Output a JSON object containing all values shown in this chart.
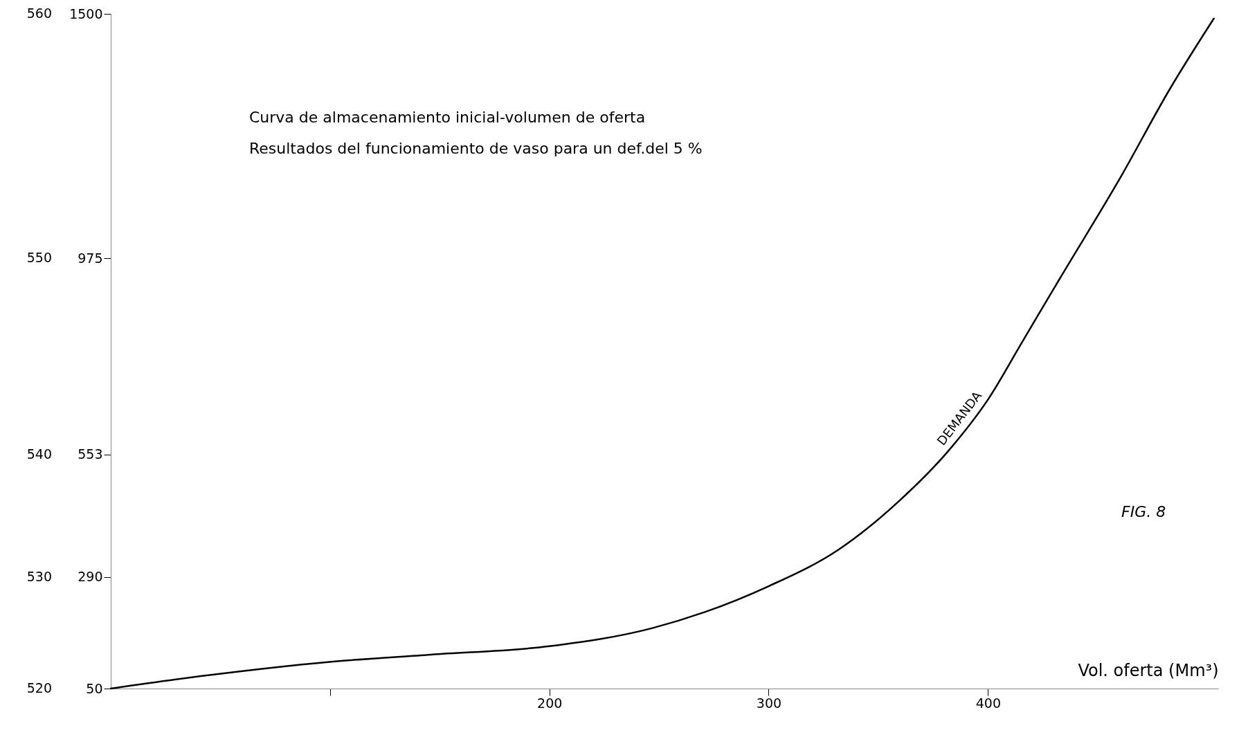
{
  "chart_data": {
    "type": "line",
    "xlabel": "Vol. oferta (Mm³)",
    "annotations": [
      "Curva de almacenamiento inicial-volumen de oferta",
      "Resultados del funcionamiento de vaso para un def.del 5 %",
      "FIG. 8",
      "520",
      "530",
      "540",
      "550",
      "560"
    ],
    "x": [
      0,
      45,
      99,
      146,
      200,
      247,
      300,
      332,
      359,
      382,
      400,
      416,
      433,
      460,
      483,
      503
    ],
    "series": [
      {
        "name": "DEMANDA",
        "color": "#000000",
        "values": [
          50,
          79,
          107,
          123,
          141,
          180,
          270,
          349,
          451,
          561,
          671,
          798,
          933,
          1145,
          1339,
          1490
        ]
      }
    ],
    "xlim": [
      0,
      505
    ],
    "xticks": [
      {
        "value": 100,
        "label": null
      },
      200,
      300,
      400
    ],
    "ylim": [
      50,
      1500
    ],
    "yticks": [
      50,
      290,
      553,
      975,
      1500
    ],
    "grid": false,
    "marker": "none",
    "line_style": "solid"
  }
}
